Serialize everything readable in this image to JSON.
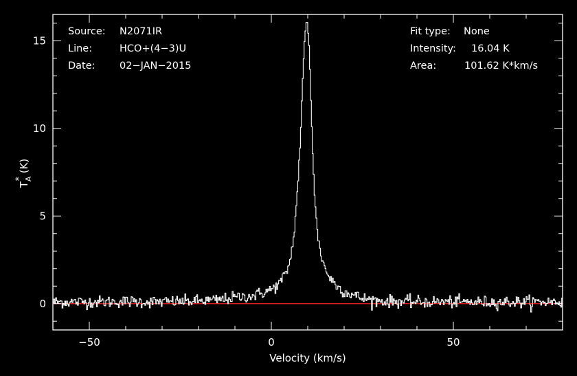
{
  "colors": {
    "background": "#000000",
    "axes": "#ffffff",
    "spectrum": "#ffffff",
    "baseline": "#ff2020",
    "text": "#ffffff"
  },
  "info": {
    "source_label": "Source:",
    "source_value": "N2071IR",
    "line_label": "Line:",
    "line_value": "HCO+(4−3)U",
    "date_label": "Date:",
    "date_value": "02−JAN−2015",
    "fit_label": "Fit type:",
    "fit_value": "None",
    "intensity_label": "Intensity:",
    "intensity_value": "16.04 K",
    "area_label": "Area:",
    "area_value": "101.62 K*km/s"
  },
  "chart_data": {
    "type": "line",
    "title": "",
    "xlabel": "Velocity (km/s)",
    "ylabel_main": "T",
    "ylabel_sub": "A",
    "ylabel_sup": "*",
    "ylabel_unit": " (K)",
    "xlim": [
      -60,
      80
    ],
    "ylim": [
      -1.5,
      16.5
    ],
    "x_ticks": [
      -50,
      0,
      50
    ],
    "x_tick_labels": [
      "−50",
      "0",
      "50"
    ],
    "y_ticks": [
      0,
      5,
      10,
      15
    ],
    "y_tick_labels": [
      "0",
      "5",
      "10",
      "15"
    ],
    "grid": false,
    "legend": "none",
    "baseline_y": 0,
    "series": [
      {
        "type": "spectrum",
        "x": [
          -60,
          -50,
          -40,
          -30,
          -20,
          -15,
          -10,
          -5,
          -2,
          0,
          2,
          4,
          5,
          6,
          7,
          8,
          8.5,
          9,
          9.5,
          9.8,
          10,
          10.3,
          10.6,
          11,
          11.5,
          12,
          13,
          14,
          15,
          16,
          18,
          20,
          25,
          30,
          40,
          50,
          60,
          70,
          80
        ],
        "y": [
          0.1,
          0.1,
          0.12,
          0.1,
          0.15,
          0.2,
          0.35,
          0.45,
          0.65,
          0.8,
          1.1,
          1.7,
          2.3,
          3.5,
          5.8,
          9.5,
          12.0,
          14.5,
          15.8,
          16.04,
          15.9,
          15.2,
          13.5,
          11.0,
          8.0,
          5.6,
          3.5,
          2.5,
          1.9,
          1.5,
          1.0,
          0.7,
          0.3,
          0.15,
          0.1,
          0.1,
          0.08,
          0.1,
          0.1
        ],
        "noise_rms_K": 0.17,
        "channel_width_kms": 0.25
      }
    ]
  }
}
